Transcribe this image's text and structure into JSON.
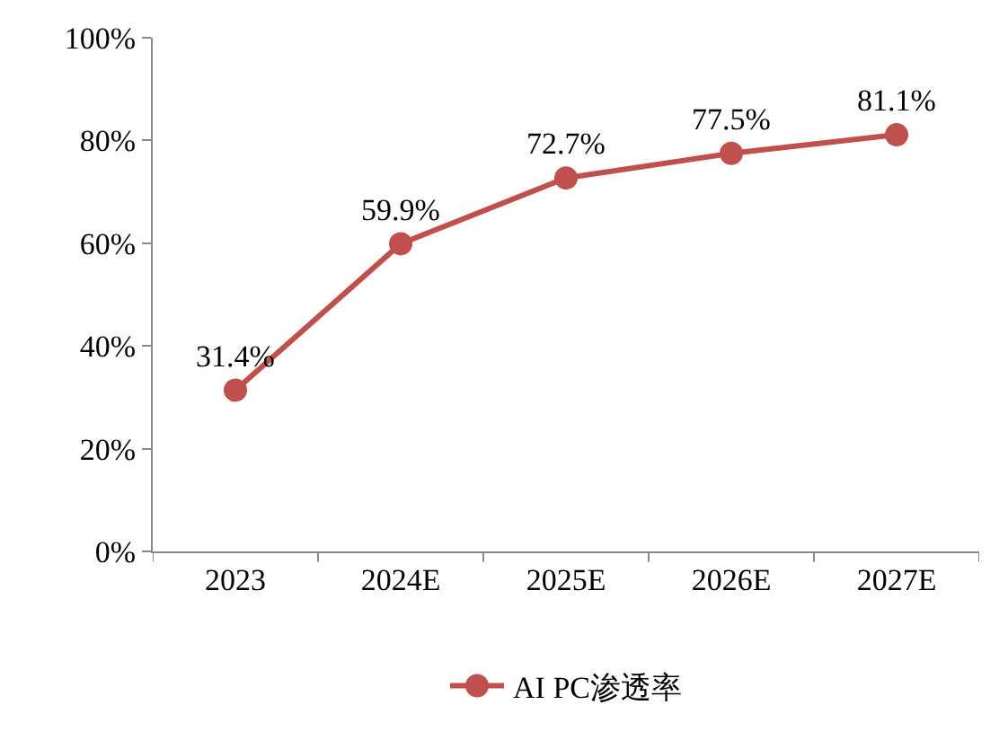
{
  "chart_data": {
    "type": "line",
    "categories": [
      "2023",
      "2024E",
      "2025E",
      "2026E",
      "2027E"
    ],
    "series": [
      {
        "name": "AI PC渗透率",
        "color": "#c0504d",
        "values": [
          31.4,
          59.9,
          72.7,
          77.5,
          81.1
        ],
        "value_labels": [
          "31.4%",
          "59.9%",
          "72.7%",
          "77.5%",
          "81.1%"
        ]
      }
    ],
    "ylim": [
      0,
      100
    ],
    "yticks": [
      {
        "value": 0,
        "label": "0%"
      },
      {
        "value": 20,
        "label": "20%"
      },
      {
        "value": 40,
        "label": "40%"
      },
      {
        "value": 60,
        "label": "60%"
      },
      {
        "value": 80,
        "label": "80%"
      },
      {
        "value": 100,
        "label": "100%"
      }
    ],
    "legend": "bottom",
    "marker": "circle",
    "line_style": "solid"
  }
}
